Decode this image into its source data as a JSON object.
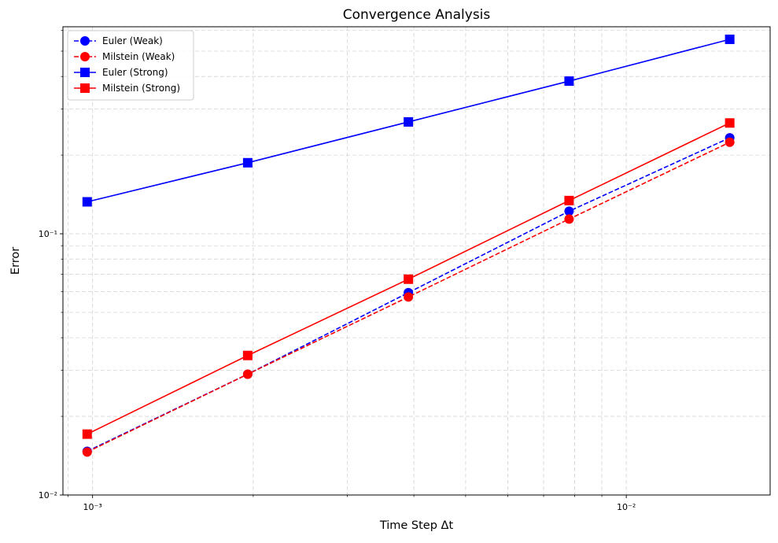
{
  "chart_data": {
    "type": "line",
    "title": "Convergence Analysis",
    "xlabel": "Time Step Δt",
    "ylabel": "Error",
    "xscale": "log",
    "yscale": "log",
    "xlim": [
      0.00088,
      0.0186
    ],
    "ylim": [
      0.01,
      0.62
    ],
    "grid": true,
    "legend_position": "top-left",
    "x": [
      0.000977,
      0.001953,
      0.003906,
      0.007813,
      0.015625
    ],
    "x_ticks": [
      {
        "value": 0.001,
        "label": "10⁻³"
      },
      {
        "value": 0.01,
        "label": "10⁻²"
      }
    ],
    "y_ticks": [
      {
        "value": 0.01,
        "label": "10⁻²"
      },
      {
        "value": 0.1,
        "label": "10⁻¹"
      }
    ],
    "series": [
      {
        "name": "Euler (Weak)",
        "color": "#0000ff",
        "linestyle": "dashed",
        "marker": "circle",
        "values": [
          0.0147,
          0.029,
          0.0595,
          0.122,
          0.233
        ]
      },
      {
        "name": "Milstein (Weak)",
        "color": "#ff0000",
        "linestyle": "dashed",
        "marker": "circle",
        "values": [
          0.0146,
          0.029,
          0.0573,
          0.1138,
          0.224
        ]
      },
      {
        "name": "Euler (Strong)",
        "color": "#0000ff",
        "linestyle": "solid",
        "marker": "square",
        "values": [
          0.1325,
          0.187,
          0.268,
          0.384,
          0.555
        ]
      },
      {
        "name": "Milstein (Strong)",
        "color": "#ff0000",
        "linestyle": "solid",
        "marker": "square",
        "values": [
          0.0171,
          0.0342,
          0.067,
          0.134,
          0.2655
        ]
      }
    ]
  }
}
